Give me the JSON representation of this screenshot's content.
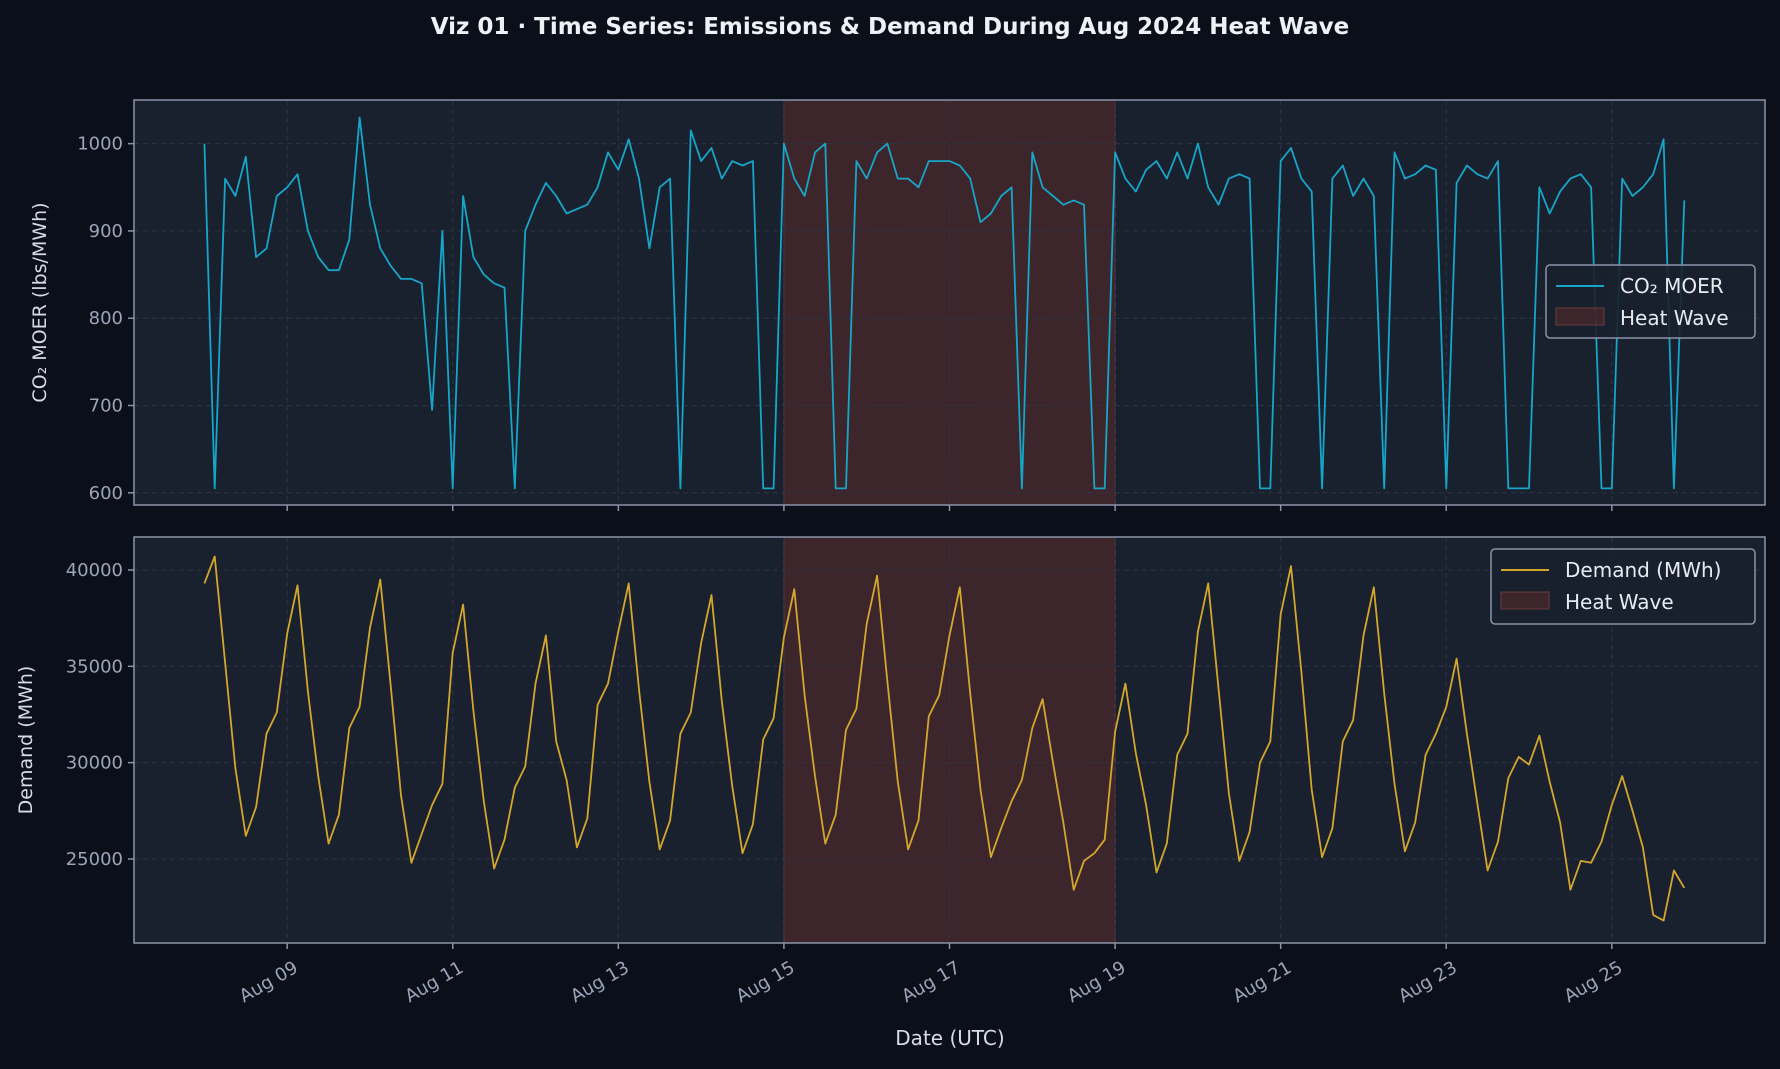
{
  "chart_data": {
    "title": "Viz 01 · Time Series: Emissions & Demand During Aug 2024 Heat Wave",
    "xlabel": "Date (UTC)",
    "xlim": [
      "2024-08-07T03:36Z",
      "2024-08-26T20:24Z"
    ],
    "x_ticks": [
      {
        "date": "2024-08-09",
        "label": "Aug 09"
      },
      {
        "date": "2024-08-11",
        "label": "Aug 11"
      },
      {
        "date": "2024-08-13",
        "label": "Aug 13"
      },
      {
        "date": "2024-08-15",
        "label": "Aug 15"
      },
      {
        "date": "2024-08-17",
        "label": "Aug 17"
      },
      {
        "date": "2024-08-19",
        "label": "Aug 19"
      },
      {
        "date": "2024-08-21",
        "label": "Aug 21"
      },
      {
        "date": "2024-08-23",
        "label": "Aug 23"
      },
      {
        "date": "2024-08-25",
        "label": "Aug 25"
      }
    ],
    "heat_wave": {
      "start": "2024-08-15",
      "end": "2024-08-19",
      "color": "#5a2c2c"
    },
    "grid": true,
    "dates": [
      "2024-08-08",
      "2024-08-09",
      "2024-08-10",
      "2024-08-11",
      "2024-08-12",
      "2024-08-13",
      "2024-08-14",
      "2024-08-15",
      "2024-08-16",
      "2024-08-17",
      "2024-08-18",
      "2024-08-19",
      "2024-08-20",
      "2024-08-21",
      "2024-08-22",
      "2024-08-23",
      "2024-08-24",
      "2024-08-25"
    ],
    "hours_utc": [
      0,
      3,
      6,
      9,
      12,
      15,
      18,
      21
    ],
    "panels": [
      {
        "type": "line",
        "ylabel": "CO₂ MOER (lbs/MWh)",
        "ylim": [
          586,
          1050
        ],
        "y_ticks": [
          600,
          700,
          800,
          900,
          1000
        ],
        "color": "#17a5c8",
        "legend": {
          "placement": "center-right",
          "entries": [
            "CO₂ MOER",
            "Heat Wave"
          ]
        },
        "values": [
          [
            1000,
            605,
            960,
            940,
            985,
            870,
            880,
            940
          ],
          [
            950,
            965,
            900,
            870,
            855,
            855,
            890,
            1030
          ],
          [
            930,
            880,
            860,
            845,
            845,
            840,
            695,
            900
          ],
          [
            605,
            940,
            870,
            850,
            840,
            835,
            605,
            900
          ],
          [
            930,
            955,
            940,
            920,
            925,
            930,
            950,
            990
          ],
          [
            970,
            1005,
            960,
            880,
            950,
            960,
            605,
            1015
          ],
          [
            980,
            995,
            960,
            980,
            975,
            980,
            605,
            605
          ],
          [
            1000,
            960,
            940,
            990,
            1000,
            605,
            605,
            980
          ],
          [
            960,
            990,
            1000,
            960,
            960,
            950,
            980,
            980
          ],
          [
            980,
            975,
            960,
            910,
            920,
            940,
            950,
            605
          ],
          [
            990,
            950,
            940,
            930,
            935,
            930,
            605,
            605
          ],
          [
            990,
            960,
            945,
            970,
            980,
            960,
            990,
            960
          ],
          [
            1000,
            950,
            930,
            960,
            965,
            960,
            605,
            605
          ],
          [
            980,
            995,
            960,
            945,
            605,
            960,
            975,
            940
          ],
          [
            960,
            940,
            605,
            990,
            960,
            965,
            975,
            970
          ],
          [
            605,
            955,
            975,
            965,
            960,
            980,
            605,
            605
          ],
          [
            605,
            950,
            920,
            945,
            960,
            965,
            950,
            605
          ],
          [
            605,
            960,
            940,
            950,
            965,
            1005,
            605,
            935
          ]
        ]
      },
      {
        "type": "line",
        "ylabel": "Demand (MWh)",
        "ylim": [
          20640,
          41710
        ],
        "y_ticks": [
          25000,
          30000,
          35000,
          40000
        ],
        "color": "#d4a72c",
        "legend": {
          "placement": "top-right",
          "entries": [
            "Demand (MWh)",
            "Heat Wave"
          ]
        },
        "values": [
          [
            39300,
            40700,
            35200,
            29700,
            26200,
            27700,
            31500,
            32600
          ],
          [
            36700,
            39200,
            33700,
            29300,
            25800,
            27300,
            31800,
            32900
          ],
          [
            37000,
            39500,
            34000,
            28300,
            24800,
            26300,
            27800,
            28900
          ],
          [
            35700,
            38200,
            32700,
            28000,
            24500,
            26000,
            28700,
            29800
          ],
          [
            34100,
            36600,
            31100,
            29100,
            25600,
            27100,
            33000,
            34100
          ],
          [
            36800,
            39300,
            33800,
            29000,
            25500,
            27000,
            31500,
            32600
          ],
          [
            36200,
            38700,
            33200,
            28800,
            25300,
            26800,
            31200,
            32300
          ],
          [
            36500,
            39000,
            33500,
            29300,
            25800,
            27300,
            31700,
            32800
          ],
          [
            37200,
            39700,
            34200,
            29000,
            25500,
            27000,
            32400,
            33500
          ],
          [
            36600,
            39100,
            33600,
            28600,
            25100,
            26600,
            28000,
            29100
          ],
          [
            31800,
            33300,
            30000,
            26900,
            23400,
            24900,
            25300,
            26000
          ],
          [
            31600,
            34100,
            30500,
            27800,
            24300,
            25800,
            30400,
            31500
          ],
          [
            36800,
            39300,
            33800,
            28400,
            24900,
            26400,
            30000,
            31100
          ],
          [
            37700,
            40200,
            34700,
            28600,
            25100,
            26600,
            31100,
            32200
          ],
          [
            36600,
            39100,
            33600,
            28900,
            25400,
            26900,
            30400,
            31500
          ],
          [
            32900,
            35400,
            31500,
            27900,
            24400,
            25900,
            29200,
            30300
          ],
          [
            29900,
            31400,
            29000,
            26900,
            23400,
            24900,
            24800,
            25900
          ],
          [
            27800,
            29300,
            27500,
            25600,
            22100,
            21800,
            24400,
            23500
          ]
        ]
      }
    ]
  }
}
